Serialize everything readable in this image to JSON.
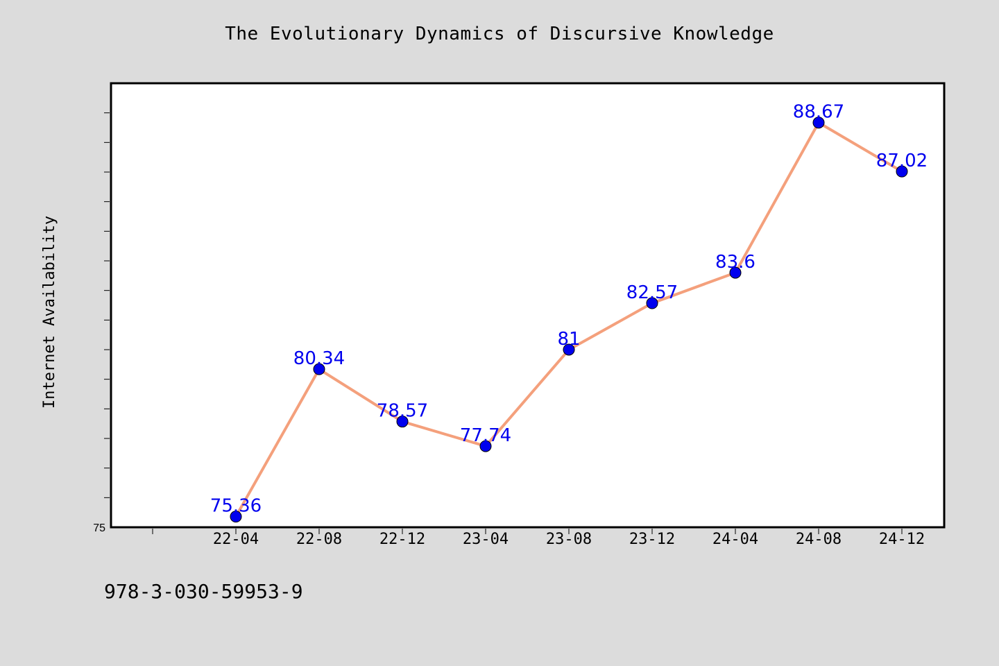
{
  "chart_data": {
    "type": "line",
    "title": "The Evolutionary Dynamics of Discursive Knowledge",
    "xlabel": "",
    "ylabel": "Internet Availability",
    "categories": [
      "22-04",
      "22-08",
      "22-12",
      "23-04",
      "23-08",
      "23-12",
      "24-04",
      "24-08",
      "24-12"
    ],
    "series": [
      {
        "values": [
          75.36,
          80.34,
          78.57,
          77.74,
          81,
          82.57,
          83.6,
          88.67,
          87.02
        ],
        "data_labels": [
          "75.36",
          "80.34",
          "78.57",
          "77.74",
          "81",
          "82.57",
          "83.6",
          "88.67",
          "87.02"
        ],
        "line_color": "#f4a07c",
        "marker_color": "#0000ee",
        "label_color": "#0000ee"
      }
    ],
    "ylim": [
      75,
      90
    ],
    "y_tick_labels": [
      "75"
    ],
    "grid": false,
    "legend": "none"
  },
  "footer": {
    "text": "978-3-030-59953-9"
  }
}
